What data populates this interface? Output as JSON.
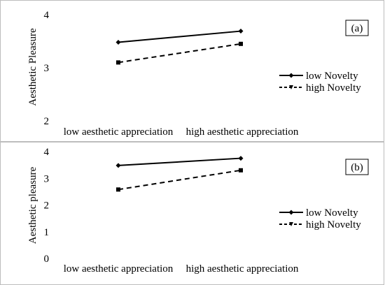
{
  "chart_data": [
    {
      "type": "line",
      "panel_label": "(a)",
      "xlabel": "",
      "ylabel": "Aesthetic Pleasure",
      "categories": [
        "low aesthetic appreciation",
        "high aesthetic appreciation"
      ],
      "yticks": [
        "2",
        "3",
        "4"
      ],
      "ylim": [
        2,
        4
      ],
      "grid": false,
      "legend_position": "right",
      "series": [
        {
          "name": "low Novelty",
          "values": [
            3.48,
            3.69
          ],
          "style": "solid",
          "marker": "diamond",
          "color": "#000000"
        },
        {
          "name": "high Novelty",
          "values": [
            3.1,
            3.45
          ],
          "style": "dashed",
          "marker": "square",
          "color": "#000000"
        }
      ]
    },
    {
      "type": "line",
      "panel_label": "(b)",
      "xlabel": "",
      "ylabel": "Aesthetic pleasure",
      "categories": [
        "low aesthetic appreciation",
        "high aesthetic appreciation"
      ],
      "yticks": [
        "0",
        "1",
        "2",
        "3",
        "4"
      ],
      "ylim": [
        0,
        4
      ],
      "grid": false,
      "legend_position": "right",
      "series": [
        {
          "name": "low Novelty",
          "values": [
            3.48,
            3.75
          ],
          "style": "solid",
          "marker": "diamond",
          "color": "#000000"
        },
        {
          "name": "high Novelty",
          "values": [
            2.58,
            3.3
          ],
          "style": "dashed",
          "marker": "square",
          "color": "#000000"
        }
      ]
    }
  ]
}
